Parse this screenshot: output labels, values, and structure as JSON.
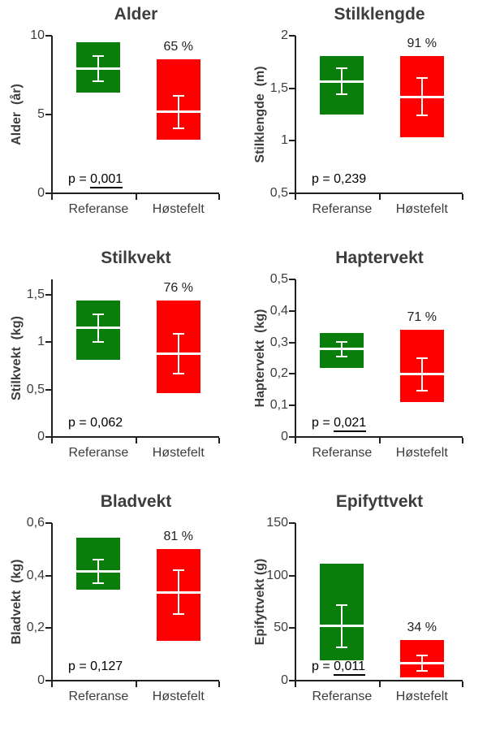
{
  "page": {
    "background": "#ffffff"
  },
  "colors": {
    "referanse": "#0a7e0a",
    "hostefelt": "#fe0000",
    "axis": "#1f1f1f",
    "text": "#3d3d3d",
    "errorbar": "#ffffff"
  },
  "categories": [
    "Referanse",
    "Høstefelt"
  ],
  "chart_data": [
    {
      "type": "bar",
      "title": "Alder",
      "ylabel": "Alder  (år)",
      "ylim": [
        0,
        10
      ],
      "yticks": [
        {
          "value": 0,
          "label": "0"
        },
        {
          "value": 5,
          "label": "5"
        },
        {
          "value": 10,
          "label": "10"
        }
      ],
      "categories": [
        "Referanse",
        "Høstefelt"
      ],
      "series": [
        {
          "name": "Referanse",
          "color_key": "referanse",
          "box_low": 6.4,
          "box_high": 9.6,
          "mean": 7.9,
          "ci_low": 7.1,
          "ci_high": 8.7
        },
        {
          "name": "Høstefelt",
          "color_key": "hostefelt",
          "box_low": 3.4,
          "box_high": 8.5,
          "mean": 5.2,
          "ci_low": 4.1,
          "ci_high": 6.2,
          "pct_label": "65 %"
        }
      ],
      "p_label": {
        "prefix": "p = ",
        "value": "0,001",
        "underlined": true
      }
    },
    {
      "type": "bar",
      "title": "Stilklengde",
      "ylabel": "Stilklengde  (m)",
      "ylim": [
        0.5,
        2
      ],
      "yticks": [
        {
          "value": 0.5,
          "label": "0,5"
        },
        {
          "value": 1,
          "label": "1"
        },
        {
          "value": 1.5,
          "label": "1,5"
        },
        {
          "value": 2,
          "label": "2"
        }
      ],
      "categories": [
        "Referanse",
        "Høstefelt"
      ],
      "series": [
        {
          "name": "Referanse",
          "color_key": "referanse",
          "box_low": 1.25,
          "box_high": 1.81,
          "mean": 1.56,
          "ci_low": 1.44,
          "ci_high": 1.69
        },
        {
          "name": "Høstefelt",
          "color_key": "hostefelt",
          "box_low": 1.03,
          "box_high": 1.81,
          "mean": 1.42,
          "ci_low": 1.24,
          "ci_high": 1.6,
          "pct_label": "91 %"
        }
      ],
      "p_label": {
        "prefix": "p = ",
        "value": "0,239",
        "underlined": false
      }
    },
    {
      "type": "bar",
      "title": "Stilkvekt",
      "ylabel": "Stilkvekt  (kg)",
      "ylim": [
        0,
        1.66
      ],
      "yticks": [
        {
          "value": 0,
          "label": "0"
        },
        {
          "value": 0.5,
          "label": "0,5"
        },
        {
          "value": 1,
          "label": "1"
        },
        {
          "value": 1.5,
          "label": "1,5"
        }
      ],
      "categories": [
        "Referanse",
        "Høstefelt"
      ],
      "series": [
        {
          "name": "Referanse",
          "color_key": "referanse",
          "box_low": 0.81,
          "box_high": 1.44,
          "mean": 1.15,
          "ci_low": 1.0,
          "ci_high": 1.29
        },
        {
          "name": "Høstefelt",
          "color_key": "hostefelt",
          "box_low": 0.46,
          "box_high": 1.44,
          "mean": 0.88,
          "ci_low": 0.67,
          "ci_high": 1.09,
          "pct_label": "76 %"
        }
      ],
      "p_label": {
        "prefix": "p = ",
        "value": "0,062",
        "underlined": false
      }
    },
    {
      "type": "bar",
      "title": "Haptervekt",
      "ylabel": "Haptervekt  (kg)",
      "ylim": [
        0,
        0.5
      ],
      "yticks": [
        {
          "value": 0,
          "label": "0"
        },
        {
          "value": 0.1,
          "label": "0,1"
        },
        {
          "value": 0.2,
          "label": "0,2"
        },
        {
          "value": 0.3,
          "label": "0,3"
        },
        {
          "value": 0.4,
          "label": "0,4"
        },
        {
          "value": 0.5,
          "label": "0,5"
        }
      ],
      "categories": [
        "Referanse",
        "Høstefelt"
      ],
      "series": [
        {
          "name": "Referanse",
          "color_key": "referanse",
          "box_low": 0.22,
          "box_high": 0.33,
          "mean": 0.28,
          "ci_low": 0.255,
          "ci_high": 0.302
        },
        {
          "name": "Høstefelt",
          "color_key": "hostefelt",
          "box_low": 0.11,
          "box_high": 0.34,
          "mean": 0.2,
          "ci_low": 0.147,
          "ci_high": 0.25,
          "pct_label": "71 %"
        }
      ],
      "p_label": {
        "prefix": "p = ",
        "value": "0,021",
        "underlined": true
      }
    },
    {
      "type": "bar",
      "title": "Bladvekt",
      "ylabel": "Bladvekt  (kg)",
      "ylim": [
        0,
        0.6
      ],
      "yticks": [
        {
          "value": 0,
          "label": "0"
        },
        {
          "value": 0.2,
          "label": "0,2"
        },
        {
          "value": 0.4,
          "label": "0,4"
        },
        {
          "value": 0.6,
          "label": "0,6"
        }
      ],
      "categories": [
        "Referanse",
        "Høstefelt"
      ],
      "series": [
        {
          "name": "Referanse",
          "color_key": "referanse",
          "box_low": 0.345,
          "box_high": 0.545,
          "mean": 0.415,
          "ci_low": 0.37,
          "ci_high": 0.46
        },
        {
          "name": "Høstefelt",
          "color_key": "hostefelt",
          "box_low": 0.15,
          "box_high": 0.5,
          "mean": 0.335,
          "ci_low": 0.255,
          "ci_high": 0.42,
          "pct_label": "81 %"
        }
      ],
      "p_label": {
        "prefix": "p = ",
        "value": "0,127",
        "underlined": false
      }
    },
    {
      "type": "bar",
      "title": "Epifyttvekt",
      "ylabel": "Epifyttvekt (g)",
      "ylim": [
        0,
        150
      ],
      "yticks": [
        {
          "value": 0,
          "label": "0"
        },
        {
          "value": 50,
          "label": "50"
        },
        {
          "value": 100,
          "label": "100"
        },
        {
          "value": 150,
          "label": "150"
        }
      ],
      "categories": [
        "Referanse",
        "Høstefelt"
      ],
      "series": [
        {
          "name": "Referanse",
          "color_key": "referanse",
          "box_low": 19,
          "box_high": 111,
          "mean": 52,
          "ci_low": 32,
          "ci_high": 72
        },
        {
          "name": "Høstefelt",
          "color_key": "hostefelt",
          "box_low": 3,
          "box_high": 39,
          "mean": 17,
          "ci_low": 9,
          "ci_high": 24,
          "pct_label": "34 %"
        }
      ],
      "p_label": {
        "prefix": "p = ",
        "value": "0,011",
        "underlined": true
      }
    }
  ]
}
